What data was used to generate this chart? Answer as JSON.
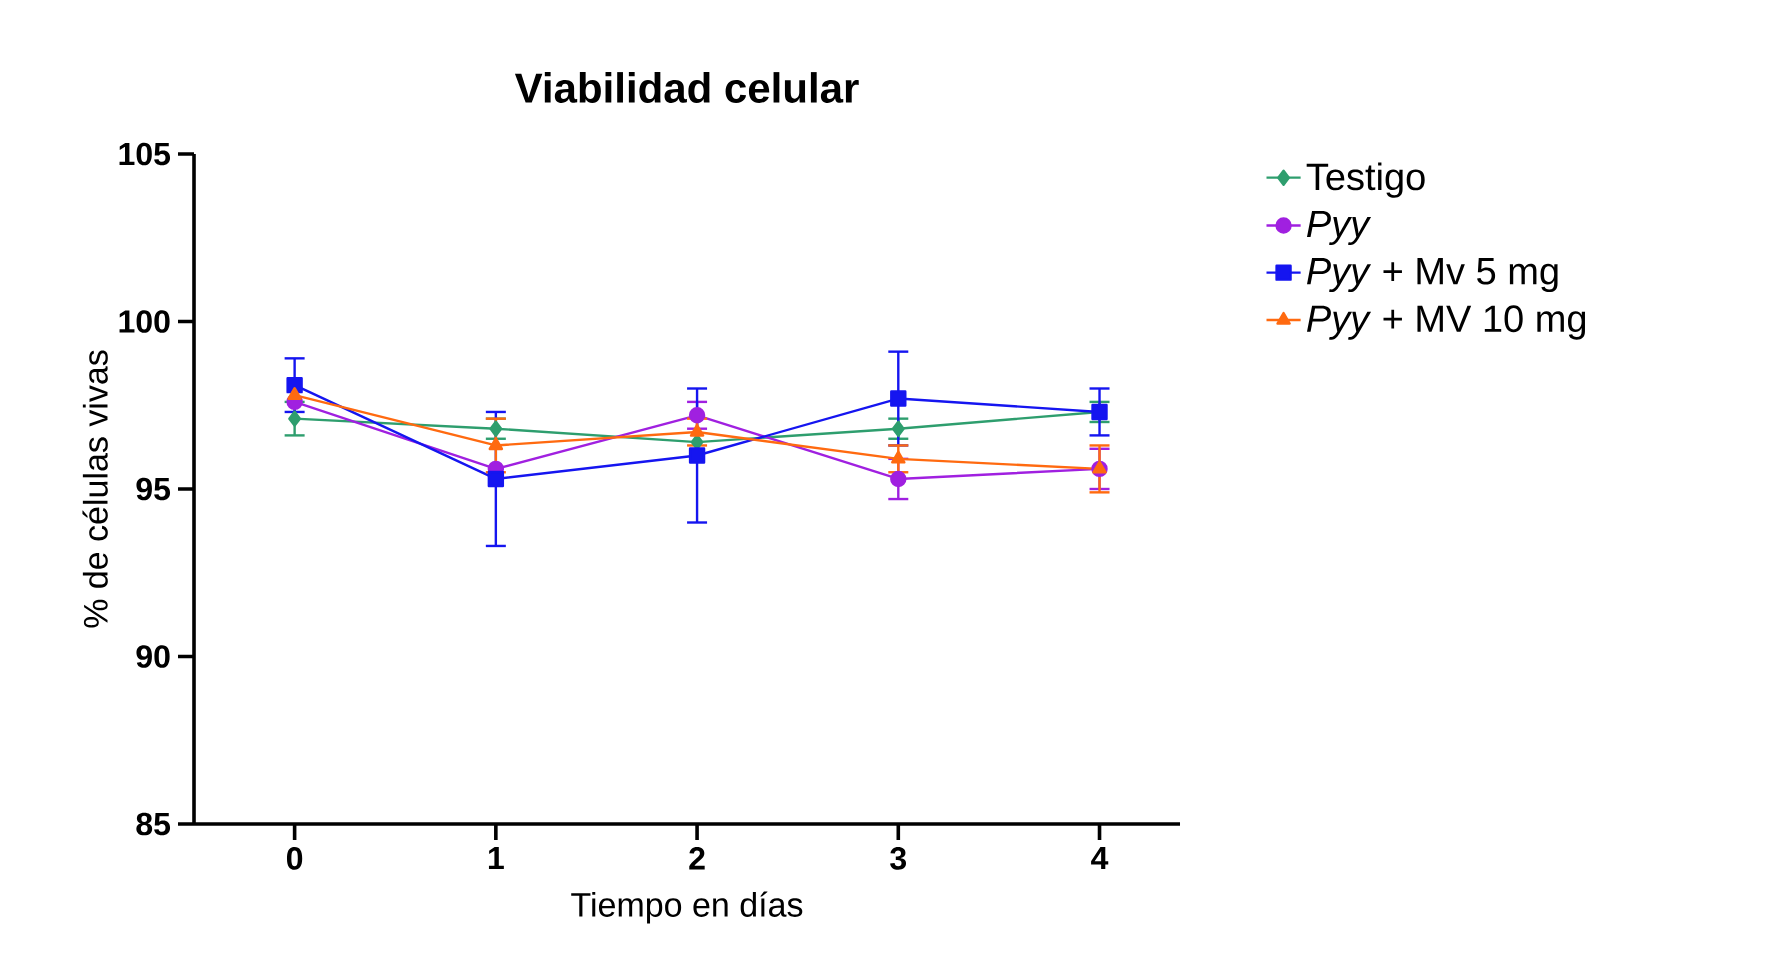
{
  "chart_data": {
    "type": "line",
    "title": "Viabilidad celular",
    "xlabel": "Tiempo en días",
    "ylabel": "% de células vivas",
    "x": [
      0,
      1,
      2,
      3,
      4
    ],
    "xlim": [
      -0.5,
      4.4
    ],
    "xticks": [
      0,
      1,
      2,
      3,
      4
    ],
    "ylim": [
      85,
      105
    ],
    "yticks": [
      85,
      90,
      95,
      100,
      105
    ],
    "grid": false,
    "legend": "right",
    "line_style": "solid",
    "series": [
      {
        "name": "Testigo",
        "color": "#2e9e6e",
        "marker": "diamond",
        "values": [
          97.1,
          96.8,
          96.4,
          96.8,
          97.3
        ],
        "errors": [
          0.5,
          0.3,
          null,
          0.3,
          0.3
        ]
      },
      {
        "name": "*Pyy*",
        "color": "#a020e0",
        "marker": "circle",
        "values": [
          97.6,
          95.6,
          97.2,
          95.3,
          95.6
        ],
        "errors": [
          null,
          null,
          0.4,
          0.6,
          0.6
        ]
      },
      {
        "name": "*Pyy* + Mv 5 mg",
        "color": "#1515f0",
        "marker": "square",
        "values": [
          98.1,
          95.3,
          96.0,
          97.7,
          97.3
        ],
        "errors": [
          0.8,
          2.0,
          2.0,
          1.4,
          0.7
        ]
      },
      {
        "name": "*Pyy* + MV 10 mg",
        "color": "#ff6a10",
        "marker": "triangle",
        "values": [
          97.8,
          96.3,
          96.7,
          95.9,
          95.6
        ],
        "errors": [
          null,
          0.8,
          0.4,
          0.4,
          0.7
        ]
      }
    ]
  }
}
